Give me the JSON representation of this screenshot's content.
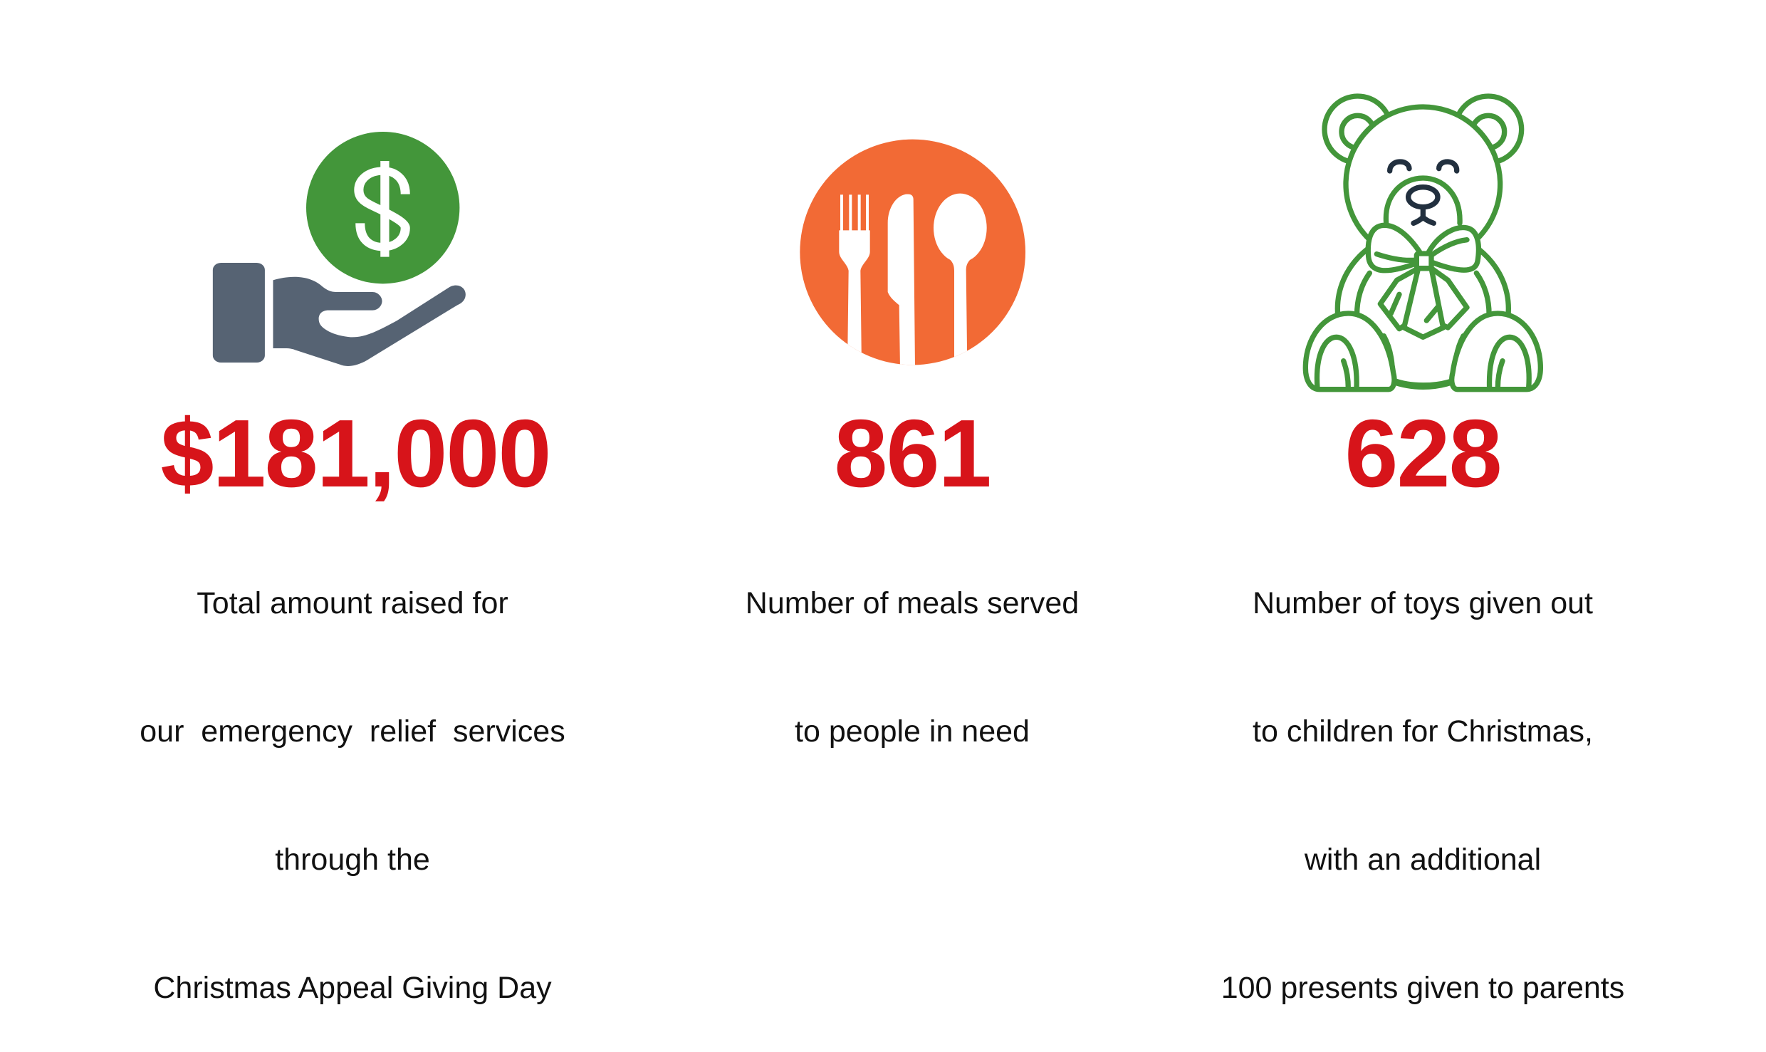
{
  "colors": {
    "stat_red": "#d7141a",
    "money_green": "#43963a",
    "hand_gray": "#566373",
    "plate_orange": "#f26a35",
    "bear_face_dark": "#22303f"
  },
  "stats": [
    {
      "icon": "hand-holding-dollar-icon",
      "value": "$181,000",
      "lines": [
        "Total amount raised for",
        "our  emergency  relief  services",
        "through the",
        "Christmas Appeal Giving Day"
      ]
    },
    {
      "icon": "fork-knife-spoon-icon",
      "value": "861",
      "lines": [
        "Number of meals served",
        "to people in need"
      ]
    },
    {
      "icon": "teddy-bear-icon",
      "value": "628",
      "lines": [
        "Number of toys given out",
        "to children for Christmas,",
        "with an additional",
        "100 presents given to parents"
      ]
    }
  ]
}
